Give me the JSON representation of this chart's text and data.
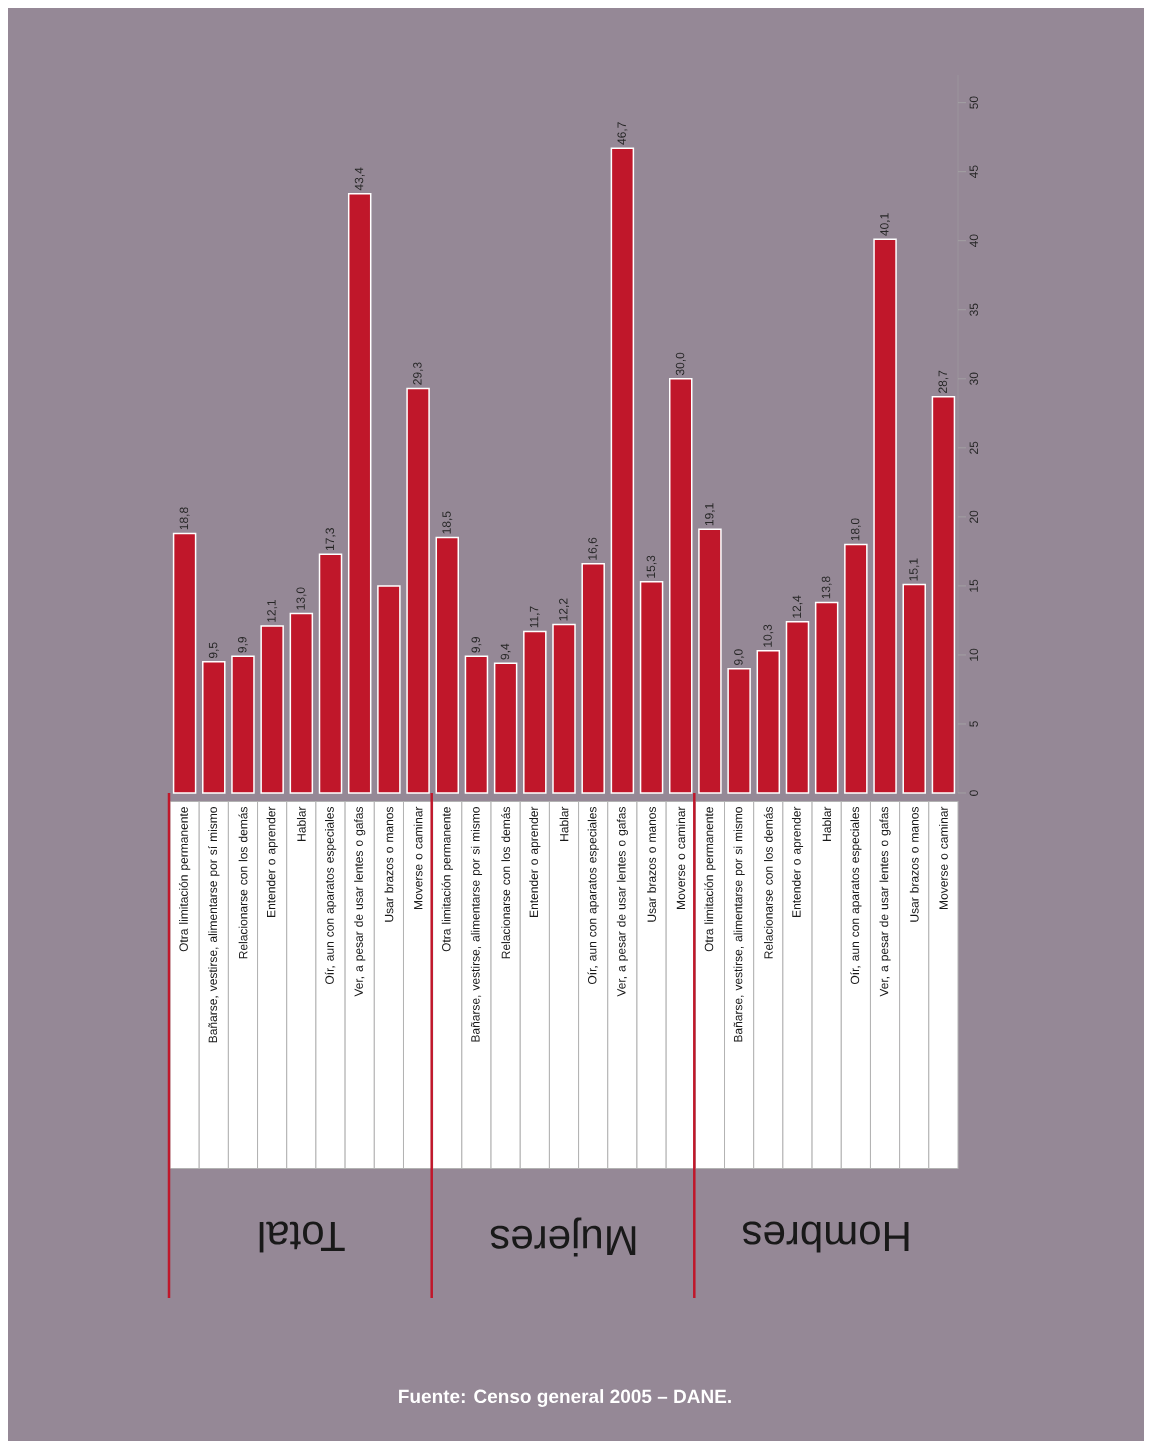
{
  "chart_data": {
    "type": "bar",
    "categories": [
      "Otra limitación permanente",
      "Bañarse, vestirse, alimentarse por sí mismo",
      "Relacionarse con los demás",
      "Entender o aprender",
      "Hablar",
      "Oír, aun con aparatos especiales",
      "Ver, a pesar de usar lentes o gafas",
      "Usar brazos o manos",
      "Moverse o caminar",
      "Otra limitación permanente",
      "Bañarse, vestirse, alimentarse por si mismo",
      "Relacionarse con los demás",
      "Entender o aprender",
      "Hablar",
      "Oír, aun con aparatos especiales",
      "Ver, a pesar de usar lentes o gafas",
      "Usar brazos o manos",
      "Moverse o caminar",
      "Otra limitación permanente",
      "Bañarse, vestirse, alimentarse por si mismo",
      "Relacionarse con los demás",
      "Entender o aprender",
      "Hablar",
      "Oír, aun con aparatos especiales",
      "Ver, a pesar de usar lentes o gafas",
      "Usar brazos o manos",
      "Moverse o caminar"
    ],
    "values": [
      18.8,
      9.5,
      9.9,
      12.1,
      13.0,
      17.3,
      43.4,
      15.0,
      29.3,
      18.5,
      9.9,
      9.4,
      11.7,
      12.2,
      16.6,
      46.7,
      15.3,
      30.0,
      19.1,
      9.0,
      10.3,
      12.4,
      13.8,
      18.0,
      40.1,
      15.1,
      28.7
    ],
    "value_labels": [
      "18,8",
      "9,5",
      "9,9",
      "12,1",
      "13,0",
      "17,3",
      "43,4",
      null,
      "29,3",
      "18,5",
      "9,9",
      "9,4",
      "11,7",
      "12,2",
      "16,6",
      "46,7",
      "15,3",
      "30,0",
      "19,1",
      "9,0",
      "10,3",
      "12,4",
      "13,8",
      "18,0",
      "40,1",
      "15,1",
      "28,7"
    ],
    "color": "#c0172a",
    "ylim": [
      0,
      52
    ],
    "yticks": [
      0,
      5,
      10,
      15,
      20,
      25,
      30,
      35,
      40,
      45,
      50
    ],
    "annotations": [
      "Total",
      "Mujeres",
      "Hombres",
      "Fuente: Censo general 2005 – DANE."
    ]
  }
}
